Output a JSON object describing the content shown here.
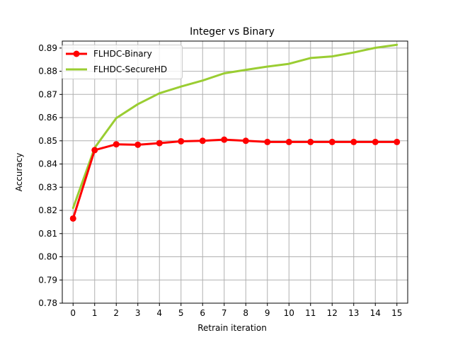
{
  "chart_data": {
    "type": "line",
    "title": "Integer vs Binary",
    "xlabel": "Retrain iteration",
    "ylabel": "Accuracy",
    "xlim": [
      -0.5,
      15.5
    ],
    "ylim": [
      0.78,
      0.893
    ],
    "x": [
      0,
      1,
      2,
      3,
      4,
      5,
      6,
      7,
      8,
      9,
      10,
      11,
      12,
      13,
      14,
      15
    ],
    "xticks": [
      "0",
      "1",
      "2",
      "3",
      "4",
      "5",
      "6",
      "7",
      "8",
      "9",
      "10",
      "11",
      "12",
      "13",
      "14",
      "15"
    ],
    "yticks": [
      "0.78",
      "0.79",
      "0.80",
      "0.81",
      "0.82",
      "0.83",
      "0.84",
      "0.85",
      "0.86",
      "0.87",
      "0.88",
      "0.89"
    ],
    "grid": true,
    "legend_position": "top-left",
    "series": [
      {
        "name": "FLHDC-Binary",
        "color": "#ff0000",
        "marker": "circle",
        "values": [
          0.8165,
          0.846,
          0.8485,
          0.8483,
          0.849,
          0.8498,
          0.85,
          0.8505,
          0.85,
          0.8495,
          0.8495,
          0.8495,
          0.8495,
          0.8495,
          0.8495,
          0.8495
        ]
      },
      {
        "name": "FLHDC-SecureHD",
        "color": "#9acd32",
        "marker": "none",
        "values": [
          0.821,
          0.847,
          0.8598,
          0.8658,
          0.8705,
          0.8734,
          0.876,
          0.8791,
          0.8806,
          0.882,
          0.8832,
          0.8857,
          0.8864,
          0.8881,
          0.8901,
          0.8914
        ]
      }
    ]
  }
}
